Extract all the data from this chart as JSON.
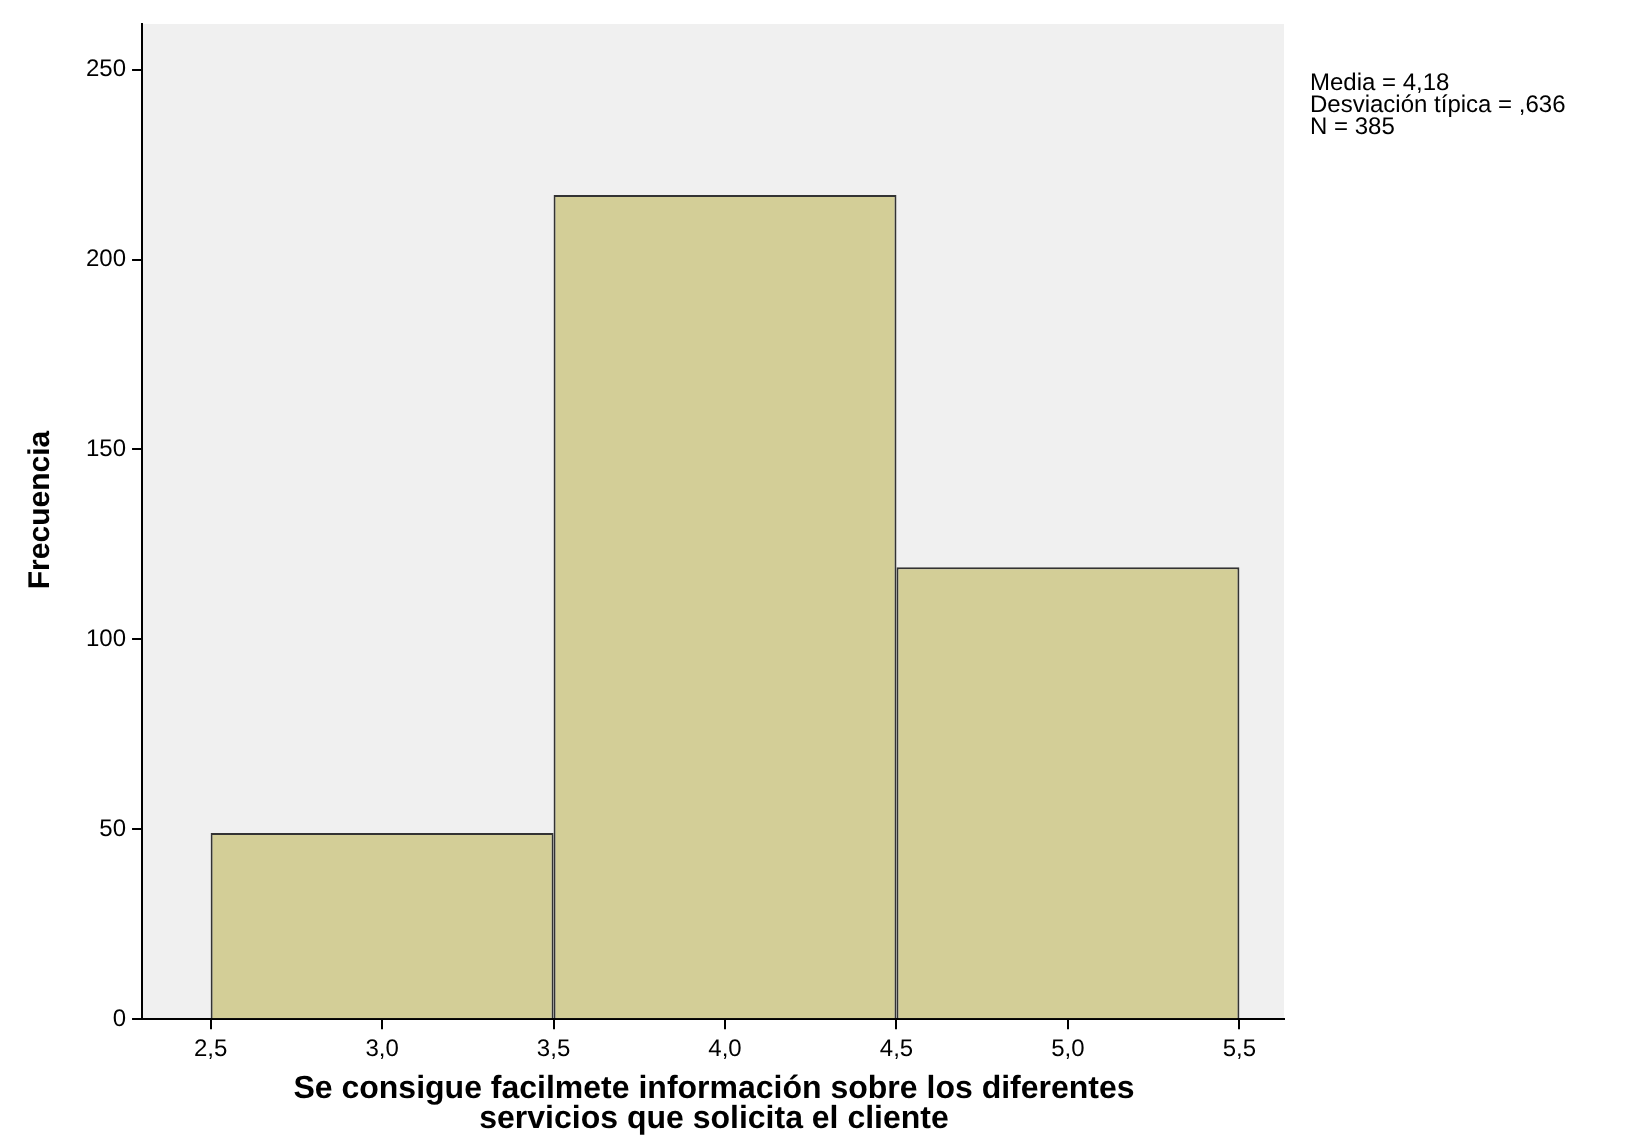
{
  "chart_data": {
    "type": "histogram",
    "xlabel": "Se consigue facilmete información sobre los diferentes servicios que solicita el cliente",
    "ylabel": "Frecuencia",
    "bins": [
      2.5,
      3.5,
      4.5,
      5.5
    ],
    "values": [
      49,
      217,
      119
    ],
    "color": "#d3ce97",
    "xlim": [
      2.3,
      5.63
    ],
    "xticks": [
      {
        "value": 2.5,
        "label": "2,5"
      },
      {
        "value": 3,
        "label": "3,0"
      },
      {
        "value": 3.5,
        "label": "3,5"
      },
      {
        "value": 4,
        "label": "4,0"
      },
      {
        "value": 4.5,
        "label": "4,5"
      },
      {
        "value": 5,
        "label": "5,0"
      },
      {
        "value": 5.5,
        "label": "5,5"
      }
    ],
    "ylim": [
      0,
      262
    ],
    "yticks": [
      0,
      50,
      100,
      150,
      200,
      250
    ],
    "grid": false,
    "annotations": [
      "Media = 4,18",
      "Desviación típica = ,636",
      "N = 385"
    ]
  }
}
